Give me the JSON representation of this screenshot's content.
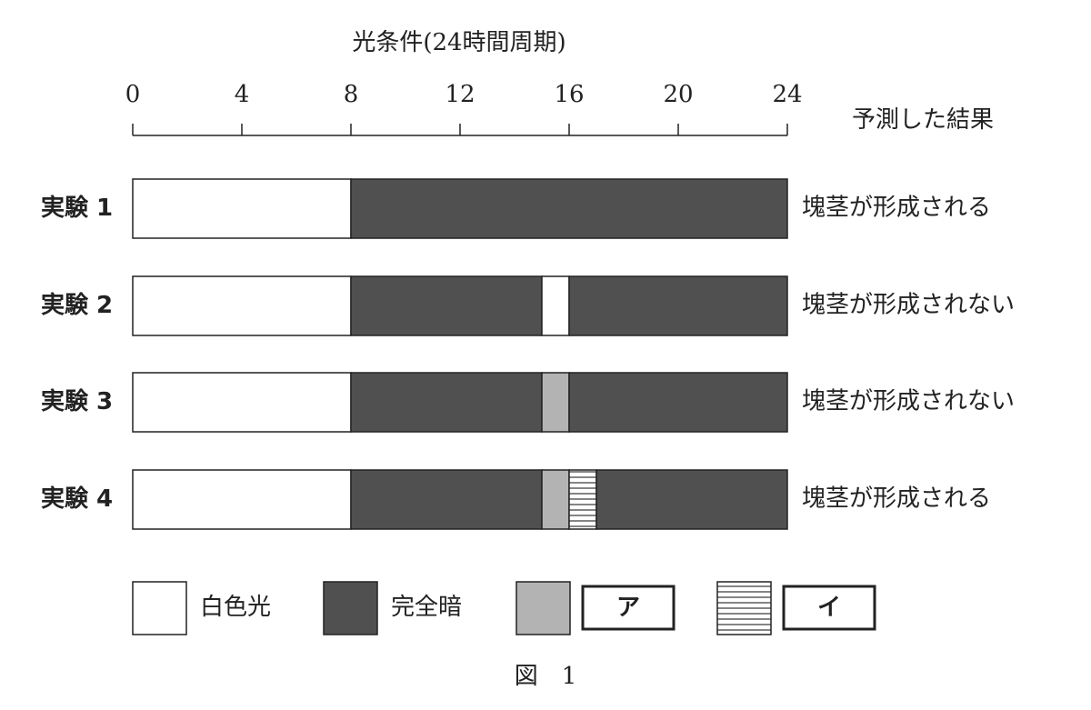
{
  "axis": {
    "title": "光条件(24時間周期)",
    "lim": [
      0,
      24
    ],
    "ticks": [
      0,
      4,
      8,
      12,
      16,
      20,
      24
    ]
  },
  "result_header": "予測した結果",
  "experiments": [
    {
      "label": "実験 1",
      "result": "塊茎が形成される",
      "segments": [
        {
          "start": 0,
          "end": 8,
          "kind": "white"
        },
        {
          "start": 8,
          "end": 24,
          "kind": "dark"
        }
      ]
    },
    {
      "label": "実験 2",
      "result": "塊茎が形成されない",
      "segments": [
        {
          "start": 0,
          "end": 8,
          "kind": "white"
        },
        {
          "start": 8,
          "end": 15,
          "kind": "dark"
        },
        {
          "start": 15,
          "end": 16,
          "kind": "white"
        },
        {
          "start": 16,
          "end": 24,
          "kind": "dark"
        }
      ]
    },
    {
      "label": "実験 3",
      "result": "塊茎が形成されない",
      "segments": [
        {
          "start": 0,
          "end": 8,
          "kind": "white"
        },
        {
          "start": 8,
          "end": 15,
          "kind": "dark"
        },
        {
          "start": 15,
          "end": 16,
          "kind": "gray"
        },
        {
          "start": 16,
          "end": 24,
          "kind": "dark"
        }
      ]
    },
    {
      "label": "実験 4",
      "result": "塊茎が形成される",
      "segments": [
        {
          "start": 0,
          "end": 8,
          "kind": "white"
        },
        {
          "start": 8,
          "end": 15,
          "kind": "dark"
        },
        {
          "start": 15,
          "end": 16,
          "kind": "gray"
        },
        {
          "start": 16,
          "end": 17,
          "kind": "striped"
        },
        {
          "start": 17,
          "end": 24,
          "kind": "dark"
        }
      ]
    }
  ],
  "legend": [
    {
      "kind": "white",
      "label": "白色光",
      "boxed": false
    },
    {
      "kind": "dark",
      "label": "完全暗",
      "boxed": false
    },
    {
      "kind": "gray",
      "label": "ア",
      "boxed": true
    },
    {
      "kind": "striped",
      "label": "イ",
      "boxed": true
    }
  ],
  "caption": "図　1"
}
